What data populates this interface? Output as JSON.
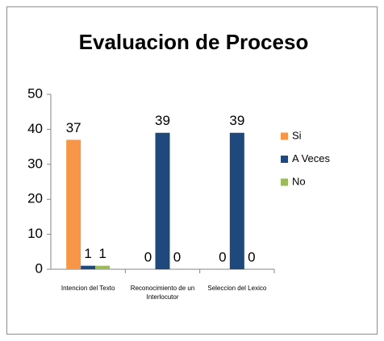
{
  "chart_data": {
    "type": "bar",
    "title": "Evaluacion de Proceso",
    "categories": [
      "Intencion del Texto",
      "Reconocimiento de un Interlocutor",
      "Seleccion del Lexico"
    ],
    "series": [
      {
        "name": "Si",
        "color": "#f79646",
        "values": [
          37,
          0,
          0
        ]
      },
      {
        "name": "A Veces",
        "color": "#1f497d",
        "values": [
          1,
          39,
          39
        ]
      },
      {
        "name": "No",
        "color": "#9bbb59",
        "values": [
          1,
          0,
          0
        ]
      }
    ],
    "ylim": [
      0,
      50
    ],
    "yticks": [
      0,
      10,
      20,
      30,
      40,
      50
    ],
    "grid": false,
    "legend": "right"
  }
}
